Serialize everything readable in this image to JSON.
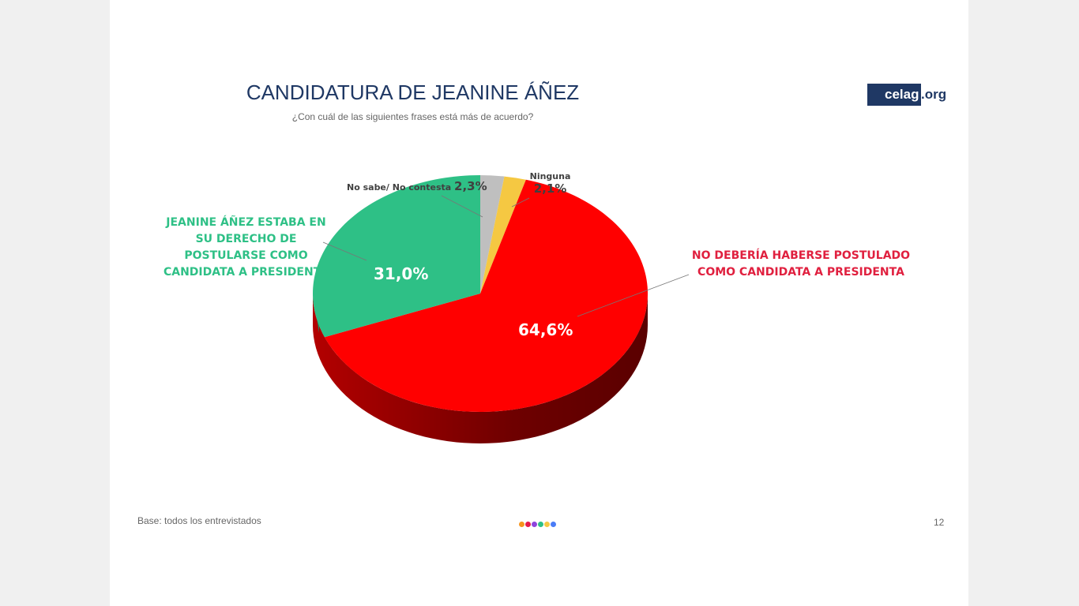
{
  "header": {
    "title": "CANDIDATURA DE JEANINE ÁÑEZ",
    "subtitle": "¿Con cuál de las siguientes frases está más de acuerdo?",
    "logo_main": "celag",
    "logo_suffix": ".org"
  },
  "footer": {
    "base": "Base: todos los entrevistados",
    "page": "12",
    "dot_colors": [
      "#f7941d",
      "#e6194b",
      "#8e44dd",
      "#2ec086",
      "#f5c842",
      "#4a7cf7"
    ]
  },
  "chart_data": {
    "type": "pie",
    "title": "CANDIDATURA DE JEANINE ÁÑEZ",
    "slices": [
      {
        "label": "No sabe/ No contesta",
        "value": 2.3,
        "value_label": "2,3%",
        "color": "#bfbfbf"
      },
      {
        "label": "Ninguna",
        "value": 2.1,
        "value_label": "2,1%",
        "color": "#f5c842"
      },
      {
        "label": "NO DEBERÍA HABERSE POSTULADO COMO CANDIDATA A PRESIDENTA",
        "value": 64.6,
        "value_label": "64,6%",
        "color": "#ff0000"
      },
      {
        "label": "JEANINE ÁÑEZ ESTABA EN SU DERECHO DE POSTULARSE COMO CANDIDATA A PRESIDENTA",
        "value": 31.0,
        "value_label": "31,0%",
        "color": "#2ec086"
      }
    ]
  }
}
